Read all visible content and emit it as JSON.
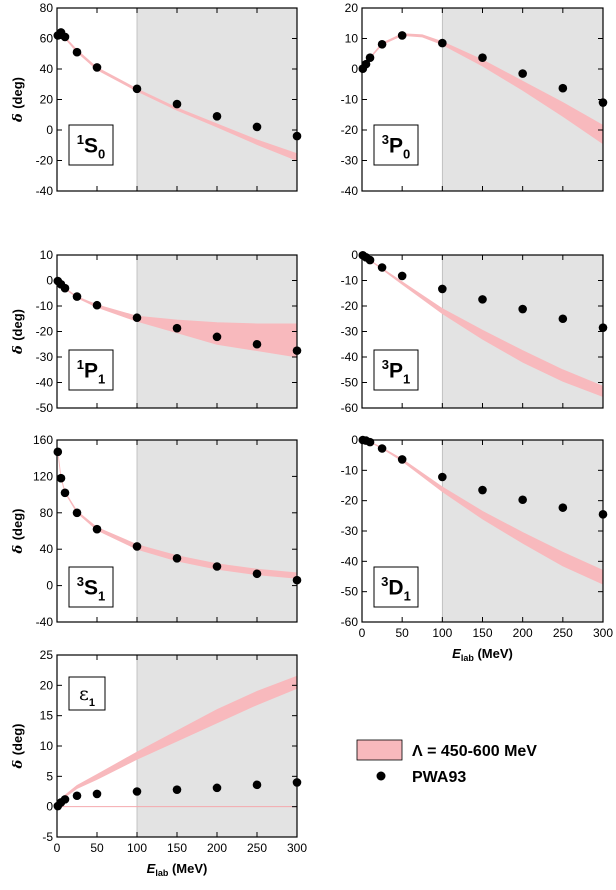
{
  "chart_data": [
    {
      "type": "scatter",
      "partial_wave": {
        "sup": "1",
        "base": "S",
        "sub": "0"
      },
      "ylabel": "δ (deg)",
      "xlabel": "",
      "xlim": [
        0,
        300
      ],
      "ylim": [
        -40,
        80
      ],
      "xticks": [],
      "yticks": [
        -40,
        -20,
        0,
        20,
        40,
        60,
        80
      ],
      "shaded_from": 100,
      "band": {
        "x": [
          1,
          5,
          10,
          25,
          50,
          100,
          150,
          200,
          250,
          300
        ],
        "low": [
          62.5,
          62.0,
          60.0,
          51.0,
          39.5,
          25.5,
          13.0,
          2.0,
          -9.5,
          -20.0
        ],
        "high": [
          63.5,
          63.0,
          61.0,
          52.5,
          41.0,
          27.0,
          14.5,
          4.0,
          -6.5,
          -15.5
        ]
      },
      "series": [
        {
          "name": "PWA93",
          "x": [
            1,
            5,
            10,
            25,
            50,
            100,
            150,
            200,
            250,
            300
          ],
          "y": [
            62,
            64,
            61,
            51,
            41,
            27,
            17,
            9,
            2,
            -4
          ]
        }
      ]
    },
    {
      "type": "scatter",
      "partial_wave": {
        "sup": "3",
        "base": "P",
        "sub": "0"
      },
      "ylabel": "",
      "xlabel": "",
      "xlim": [
        0,
        300
      ],
      "ylim": [
        -40,
        20
      ],
      "xticks": [],
      "yticks": [
        -40,
        -30,
        -20,
        -10,
        0,
        10,
        20
      ],
      "shaded_from": 100,
      "band": {
        "x": [
          1,
          5,
          10,
          25,
          50,
          75,
          100,
          150,
          200,
          250,
          300
        ],
        "low": [
          0.1,
          1.5,
          3.5,
          8.0,
          11.0,
          10.5,
          8.0,
          1.0,
          -7.0,
          -15.5,
          -24.5
        ],
        "high": [
          0.2,
          1.7,
          3.8,
          8.5,
          11.6,
          11.2,
          9.0,
          3.0,
          -4.0,
          -11.0,
          -18.5
        ]
      },
      "series": [
        {
          "name": "PWA93",
          "x": [
            1,
            5,
            10,
            25,
            50,
            100,
            150,
            200,
            250,
            300
          ],
          "y": [
            0.1,
            1.6,
            3.7,
            8.1,
            11.0,
            8.5,
            3.7,
            -1.5,
            -6.3,
            -11.0
          ]
        }
      ]
    },
    {
      "type": "scatter",
      "partial_wave": {
        "sup": "1",
        "base": "P",
        "sub": "1"
      },
      "ylabel": "δ (deg)",
      "xlabel": "",
      "xlim": [
        0,
        300
      ],
      "ylim": [
        -50,
        10
      ],
      "xticks": [],
      "yticks": [
        -50,
        -40,
        -30,
        -20,
        -10,
        0,
        10
      ],
      "shaded_from": 100,
      "band": {
        "x": [
          1,
          5,
          10,
          25,
          50,
          100,
          150,
          200,
          250,
          300
        ],
        "low": [
          -0.2,
          -1.6,
          -3.2,
          -6.8,
          -10.5,
          -16.0,
          -20.5,
          -25.0,
          -27.5,
          -30.0
        ],
        "high": [
          -0.1,
          -1.5,
          -3.0,
          -6.3,
          -9.5,
          -14.0,
          -15.5,
          -16.5,
          -17.0,
          -17.0
        ]
      },
      "series": [
        {
          "name": "PWA93",
          "x": [
            1,
            5,
            10,
            25,
            50,
            100,
            150,
            200,
            250,
            300
          ],
          "y": [
            -0.2,
            -1.5,
            -3.0,
            -6.3,
            -9.7,
            -14.6,
            -18.7,
            -22.1,
            -25.0,
            -27.5
          ]
        }
      ]
    },
    {
      "type": "scatter",
      "partial_wave": {
        "sup": "3",
        "base": "P",
        "sub": "1"
      },
      "ylabel": "",
      "xlabel": "",
      "xlim": [
        0,
        300
      ],
      "ylim": [
        -60,
        0
      ],
      "xticks": [],
      "yticks": [
        -60,
        -50,
        -40,
        -30,
        -20,
        -10,
        0
      ],
      "shaded_from": 100,
      "band": {
        "x": [
          1,
          5,
          10,
          25,
          50,
          100,
          150,
          200,
          250,
          300
        ],
        "low": [
          -0.1,
          -0.9,
          -2.1,
          -5.6,
          -11.5,
          -23.0,
          -33.0,
          -42.0,
          -49.5,
          -55.5
        ],
        "high": [
          -0.1,
          -0.8,
          -2.0,
          -5.2,
          -10.5,
          -21.0,
          -29.5,
          -37.5,
          -45.0,
          -51.5
        ]
      },
      "series": [
        {
          "name": "PWA93",
          "x": [
            1,
            5,
            10,
            25,
            50,
            100,
            150,
            200,
            250,
            300
          ],
          "y": [
            -0.1,
            -0.9,
            -2.0,
            -4.9,
            -8.2,
            -13.3,
            -17.4,
            -21.2,
            -25.0,
            -28.5
          ]
        }
      ]
    },
    {
      "type": "scatter",
      "partial_wave": {
        "sup": "3",
        "base": "S",
        "sub": "1"
      },
      "ylabel": "δ (deg)",
      "xlabel": "",
      "xlim": [
        0,
        300
      ],
      "ylim": [
        -40,
        160
      ],
      "xticks": [],
      "yticks": [
        -40,
        0,
        40,
        80,
        120,
        160
      ],
      "shaded_from": 100,
      "band": {
        "x": [
          1,
          5,
          10,
          25,
          50,
          100,
          150,
          200,
          250,
          300
        ],
        "low": [
          147,
          118,
          102,
          80,
          61,
          40,
          27,
          18,
          12,
          8
        ],
        "high": [
          148,
          119,
          103,
          82,
          64,
          45,
          33,
          24,
          18,
          14
        ]
      },
      "series": [
        {
          "name": "PWA93",
          "x": [
            1,
            5,
            10,
            25,
            50,
            100,
            150,
            200,
            250,
            300
          ],
          "y": [
            147,
            118,
            102,
            80,
            62,
            43,
            30,
            21,
            13,
            6
          ]
        }
      ]
    },
    {
      "type": "scatter",
      "partial_wave": {
        "sup": "3",
        "base": "D",
        "sub": "1"
      },
      "ylabel": "",
      "xlabel": "E_lab (MeV)",
      "xlim": [
        0,
        300
      ],
      "ylim": [
        -60,
        0
      ],
      "xticks": [
        0,
        50,
        100,
        150,
        200,
        250,
        300
      ],
      "yticks": [
        -60,
        -50,
        -40,
        -30,
        -20,
        -10,
        0
      ],
      "shaded_from": 100,
      "band": {
        "x": [
          1,
          5,
          10,
          25,
          50,
          100,
          150,
          200,
          250,
          300
        ],
        "low": [
          0,
          -0.2,
          -0.7,
          -2.8,
          -7.0,
          -17.0,
          -26.0,
          -34.0,
          -41.5,
          -47.5
        ],
        "high": [
          0,
          -0.2,
          -0.6,
          -2.5,
          -6.3,
          -15.5,
          -23.5,
          -30.5,
          -37.0,
          -43.0
        ]
      },
      "series": [
        {
          "name": "PWA93",
          "x": [
            1,
            5,
            10,
            25,
            50,
            100,
            150,
            200,
            250,
            300
          ],
          "y": [
            0,
            -0.2,
            -0.7,
            -2.8,
            -6.4,
            -12.2,
            -16.5,
            -19.7,
            -22.3,
            -24.5
          ]
        }
      ]
    },
    {
      "type": "scatter",
      "partial_wave": {
        "sup": "",
        "base": "ε",
        "sub": "1"
      },
      "ylabel": "δ (deg)",
      "xlabel": "E_lab (MeV)",
      "xlim": [
        0,
        300
      ],
      "ylim": [
        -5,
        25
      ],
      "xticks": [
        0,
        50,
        100,
        150,
        200,
        250,
        300
      ],
      "yticks": [
        -5,
        0,
        5,
        10,
        15,
        20,
        25
      ],
      "shaded_from": 100,
      "band": {
        "x": [
          1,
          5,
          10,
          25,
          50,
          100,
          150,
          200,
          250,
          300
        ],
        "low": [
          0.1,
          0.8,
          1.6,
          3.0,
          4.5,
          7.8,
          10.8,
          13.8,
          16.8,
          19.5
        ],
        "high": [
          0.2,
          1.0,
          1.9,
          3.5,
          5.3,
          9.0,
          12.5,
          16.0,
          19.0,
          21.5
        ]
      },
      "series": [
        {
          "name": "PWA93",
          "x": [
            1,
            5,
            10,
            25,
            50,
            100,
            150,
            200,
            250,
            300
          ],
          "y": [
            0.1,
            0.7,
            1.2,
            1.8,
            2.1,
            2.5,
            2.8,
            3.1,
            3.6,
            4.0
          ]
        }
      ]
    }
  ],
  "legend": {
    "band_label": "Λ = 450-600 MeV",
    "points_label": "PWA93"
  },
  "colors": {
    "band": "#f8b9bd",
    "shade": "#e3e3e3",
    "point": "#000000"
  }
}
